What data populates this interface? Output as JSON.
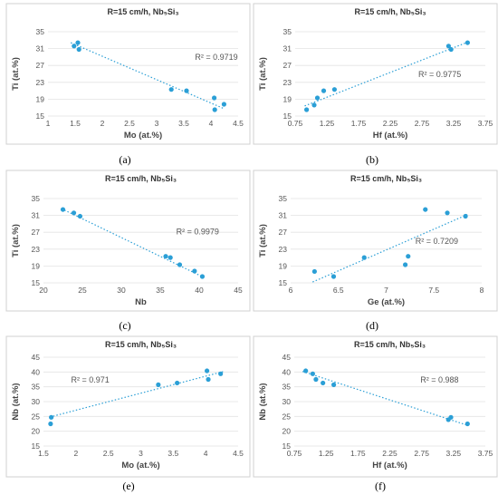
{
  "chart_data": [
    {
      "id": "a",
      "type": "scatter",
      "caption": "(a)",
      "title": "R=15 cm/h, Nb₅Si₃",
      "xlabel": "Mo (at.%)",
      "ylabel": "Ti (at.%)",
      "xlim": [
        1,
        4.5
      ],
      "ylim": [
        15,
        35
      ],
      "xticks": [
        1,
        1.5,
        2,
        2.5,
        3,
        3.5,
        4,
        4.5
      ],
      "xtick_labels": [
        "1",
        "1.5",
        "2",
        "2.5",
        "3",
        "3.5",
        "4",
        "4.5"
      ],
      "yticks": [
        15,
        19,
        23,
        27,
        31,
        35
      ],
      "ytick_labels": [
        "15",
        "19",
        "23",
        "27",
        "31",
        "35"
      ],
      "points": [
        [
          1.48,
          31.6
        ],
        [
          1.55,
          32.4
        ],
        [
          1.57,
          30.8
        ],
        [
          3.27,
          21.3
        ],
        [
          3.55,
          21.0
        ],
        [
          4.06,
          19.3
        ],
        [
          4.07,
          16.5
        ],
        [
          4.24,
          17.8
        ]
      ],
      "trend": [
        [
          1.42,
          32.4
        ],
        [
          4.25,
          16.7
        ]
      ],
      "r2": "R² = 0.9719",
      "r2_pos": [
        4.1,
        28.3
      ],
      "grid": true
    },
    {
      "id": "b",
      "type": "scatter",
      "caption": "(b)",
      "title": "R=15 cm/h, Nb₅Si₃",
      "xlabel": "Hf (at.%)",
      "ylabel": "Ti (at.%)",
      "xlim": [
        0.75,
        3.75
      ],
      "ylim": [
        15,
        35
      ],
      "xticks": [
        0.75,
        1.25,
        1.75,
        2.25,
        2.75,
        3.25,
        3.75
      ],
      "xtick_labels": [
        "0.75",
        "1.25",
        "1.75",
        "2.25",
        "2.75",
        "3.25",
        "3.75"
      ],
      "yticks": [
        15,
        19,
        23,
        27,
        31,
        35
      ],
      "ytick_labels": [
        "15",
        "19",
        "23",
        "27",
        "31",
        "35"
      ],
      "points": [
        [
          0.93,
          16.5
        ],
        [
          1.05,
          17.6
        ],
        [
          1.1,
          19.3
        ],
        [
          1.2,
          21.0
        ],
        [
          1.37,
          21.3
        ],
        [
          3.17,
          31.6
        ],
        [
          3.21,
          30.8
        ],
        [
          3.47,
          32.4
        ]
      ],
      "trend": [
        [
          0.9,
          17.4
        ],
        [
          3.45,
          32.4
        ]
      ],
      "r2": "R² = 0.9775",
      "r2_pos": [
        3.03,
        24.2
      ],
      "grid": true
    },
    {
      "id": "c",
      "type": "scatter",
      "caption": "(c)",
      "title": "R=15 cm/h, Nb₅Si₃",
      "xlabel": "Nb",
      "ylabel": "Ti (at.%)",
      "xlim": [
        20,
        45
      ],
      "ylim": [
        15,
        35
      ],
      "xticks": [
        20,
        25,
        30,
        35,
        40,
        45
      ],
      "xtick_labels": [
        "20",
        "25",
        "30",
        "35",
        "40",
        "45"
      ],
      "yticks": [
        15,
        19,
        23,
        27,
        31,
        35
      ],
      "ytick_labels": [
        "15",
        "19",
        "23",
        "27",
        "31",
        "35"
      ],
      "points": [
        [
          22.5,
          32.4
        ],
        [
          23.9,
          31.6
        ],
        [
          24.7,
          30.8
        ],
        [
          35.7,
          21.3
        ],
        [
          36.3,
          21.0
        ],
        [
          37.5,
          19.3
        ],
        [
          39.4,
          17.8
        ],
        [
          40.4,
          16.5
        ]
      ],
      "trend": [
        [
          22.3,
          32.6
        ],
        [
          40.6,
          16.3
        ]
      ],
      "r2": "R² = 0.9979",
      "r2_pos": [
        39.8,
        26.5
      ],
      "grid": true
    },
    {
      "id": "d",
      "type": "scatter",
      "caption": "(d)",
      "title": "R=15 cm/h, Nb₅Si₃",
      "xlabel": "Ge (at.%)",
      "ylabel": "Ti (at.%)",
      "xlim": [
        6,
        8
      ],
      "ylim": [
        15,
        35
      ],
      "xticks": [
        6,
        6.5,
        7,
        7.5,
        8
      ],
      "xtick_labels": [
        "6",
        "6.5",
        "7",
        "7.5",
        "8"
      ],
      "yticks": [
        15,
        19,
        23,
        27,
        31,
        35
      ],
      "ytick_labels": [
        "15",
        "19",
        "23",
        "27",
        "31",
        "35"
      ],
      "points": [
        [
          6.25,
          17.7
        ],
        [
          6.45,
          16.5
        ],
        [
          6.77,
          21.0
        ],
        [
          7.2,
          19.3
        ],
        [
          7.23,
          21.3
        ],
        [
          7.41,
          32.4
        ],
        [
          7.64,
          31.6
        ],
        [
          7.83,
          30.8
        ]
      ],
      "trend": [
        [
          6.23,
          15.2
        ],
        [
          7.85,
          31.2
        ]
      ],
      "r2": "R² = 0.7209",
      "r2_pos": [
        7.53,
        24.2
      ],
      "grid": true
    },
    {
      "id": "e",
      "type": "scatter",
      "caption": "(e)",
      "title": "R=15 cm/h, Nb₅Si₃",
      "xlabel": "Mo (at.%)",
      "ylabel": "Nb (at.%)",
      "xlim": [
        1.5,
        4.5
      ],
      "ylim": [
        15,
        45
      ],
      "xticks": [
        1.5,
        2,
        2.5,
        3,
        3.5,
        4,
        4.5
      ],
      "xtick_labels": [
        "1.5",
        "2",
        "2.5",
        "3",
        "3.5",
        "4",
        "4.5"
      ],
      "yticks": [
        15,
        20,
        25,
        30,
        35,
        40,
        45
      ],
      "ytick_labels": [
        "15",
        "20",
        "25",
        "30",
        "35",
        "40",
        "45"
      ],
      "points": [
        [
          1.61,
          22.5
        ],
        [
          1.62,
          24.7
        ],
        [
          3.27,
          35.7
        ],
        [
          3.56,
          36.3
        ],
        [
          4.02,
          40.4
        ],
        [
          4.04,
          37.5
        ],
        [
          4.23,
          39.4
        ]
      ],
      "trend": [
        [
          1.6,
          24.8
        ],
        [
          4.28,
          40.2
        ]
      ],
      "r2": "R² = 0.971",
      "r2_pos": [
        2.22,
        36.4
      ],
      "grid": true
    },
    {
      "id": "f",
      "type": "scatter",
      "caption": "(f)",
      "title": "R=15 cm/h, Nb₅Si₃",
      "xlabel": "Hf (at.%)",
      "ylabel": "Nb (at.%)",
      "xlim": [
        0.75,
        3.75
      ],
      "ylim": [
        15,
        45
      ],
      "xticks": [
        0.75,
        1.25,
        1.75,
        2.25,
        2.75,
        3.25,
        3.75
      ],
      "xtick_labels": [
        "0.75",
        "1.25",
        "1.75",
        "2.25",
        "2.75",
        "3.25",
        "3.75"
      ],
      "yticks": [
        15,
        20,
        25,
        30,
        35,
        40,
        45
      ],
      "ytick_labels": [
        "15",
        "20",
        "25",
        "30",
        "35",
        "40",
        "45"
      ],
      "points": [
        [
          0.93,
          40.4
        ],
        [
          1.04,
          39.4
        ],
        [
          1.09,
          37.5
        ],
        [
          1.2,
          36.3
        ],
        [
          1.37,
          35.7
        ],
        [
          3.17,
          23.9
        ],
        [
          3.21,
          24.7
        ],
        [
          3.47,
          22.5
        ]
      ],
      "trend": [
        [
          0.88,
          40.2
        ],
        [
          3.47,
          22.0
        ]
      ],
      "r2": "R² = 0.988",
      "r2_pos": [
        3.03,
        36.4
      ],
      "grid": true
    }
  ]
}
